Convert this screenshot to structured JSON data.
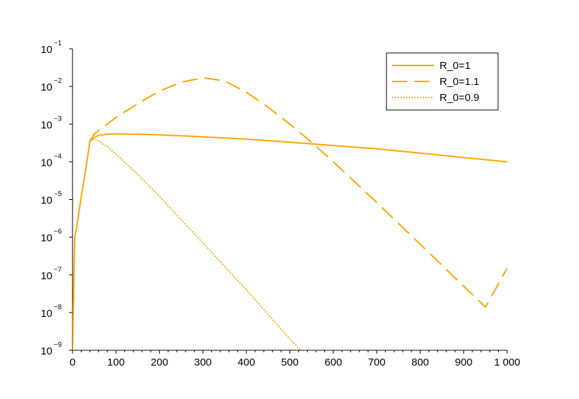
{
  "chart_data": {
    "type": "line",
    "title": "",
    "xlabel": "",
    "ylabel": "",
    "xlim": [
      0,
      1000
    ],
    "ylim": [
      1e-09,
      0.1
    ],
    "yscale": "log",
    "grid": false,
    "legend_position": "top-right",
    "line_color": "#FFA500",
    "x_ticks": [
      0,
      100,
      200,
      300,
      400,
      500,
      600,
      700,
      800,
      900,
      1000
    ],
    "x_tick_labels": [
      "0",
      "100",
      "200",
      "300",
      "400",
      "500",
      "600",
      "700",
      "800",
      "900",
      "1 000"
    ],
    "y_ticks": [
      {
        "value": 1e-09,
        "base": "10",
        "exp": "−9"
      },
      {
        "value": 1e-08,
        "base": "10",
        "exp": "−8"
      },
      {
        "value": 1e-07,
        "base": "10",
        "exp": "−7"
      },
      {
        "value": 1e-06,
        "base": "10",
        "exp": "−6"
      },
      {
        "value": 1e-05,
        "base": "10",
        "exp": "−5"
      },
      {
        "value": 0.0001,
        "base": "10",
        "exp": "−4"
      },
      {
        "value": 0.001,
        "base": "10",
        "exp": "−3"
      },
      {
        "value": 0.01,
        "base": "10",
        "exp": "−2"
      },
      {
        "value": 0.1,
        "base": "10",
        "exp": "−1"
      }
    ],
    "series": [
      {
        "name": "R_0=1",
        "style": "solid",
        "x": [
          0,
          5,
          10,
          20,
          30,
          40,
          50,
          60,
          80,
          100,
          150,
          200,
          300,
          400,
          500,
          600,
          700,
          800,
          900,
          1000
        ],
        "y": [
          1e-09,
          1e-06,
          2e-06,
          1.2e-05,
          6e-05,
          0.00035,
          0.00044,
          0.0005,
          0.00054,
          0.00055,
          0.00054,
          0.00052,
          0.00046,
          0.0004,
          0.00033,
          0.00027,
          0.00022,
          0.00017,
          0.00013,
          0.0001
        ]
      },
      {
        "name": "R_0=1.1",
        "style": "dashed",
        "x": [
          40,
          50,
          100,
          150,
          200,
          250,
          300,
          350,
          400,
          450,
          500,
          550,
          600,
          650,
          700,
          750,
          800,
          850,
          900,
          950,
          1000
        ],
        "y": [
          0.00035,
          0.00055,
          0.0015,
          0.0035,
          0.0075,
          0.013,
          0.017,
          0.014,
          0.007,
          0.0028,
          0.001,
          0.00033,
          0.0001,
          2.9e-05,
          8.3e-06,
          2.3e-06,
          6.5e-07,
          1.8e-07,
          5e-08,
          1.4e-08,
          1.5e-07
        ]
      },
      {
        "name": "R_0=0.9",
        "style": "dotted",
        "x": [
          40,
          50,
          60,
          80,
          100,
          150,
          200,
          300,
          400,
          500,
          600,
          700
        ],
        "y": [
          0.00038,
          0.0004,
          0.00036,
          0.00025,
          0.00016,
          4.6e-05,
          1.2e-05,
          7e-07,
          4e-08,
          2e-09,
          1.2e-10,
          1e-09
        ]
      }
    ]
  }
}
